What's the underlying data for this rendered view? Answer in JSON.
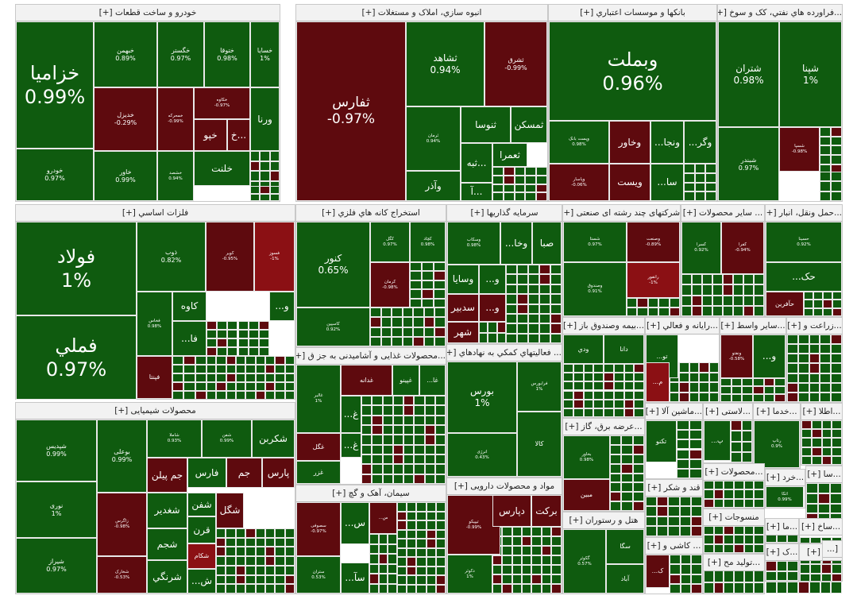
{
  "colors": {
    "up": "#0f5b0f",
    "down": "#5e0a0e",
    "bright_down": "#8b1014"
  },
  "sectors": [
    {
      "label": "خودرو و ساخت قطعات [+]",
      "tiles": [
        {
          "sym": "خزامیا",
          "chg": "0.99%",
          "dir": "up"
        },
        {
          "sym": "خودرو",
          "chg": "0.97%",
          "dir": "up"
        },
        {
          "sym": "خبهمن",
          "chg": "0.89%",
          "dir": "up"
        },
        {
          "sym": "خگستر",
          "chg": "0.97%",
          "dir": "up"
        },
        {
          "sym": "ختوقا",
          "chg": "0.98%",
          "dir": "up"
        },
        {
          "sym": "خسایا",
          "chg": "1%",
          "dir": "up"
        },
        {
          "sym": "خمحرکه",
          "chg": "-0.99%",
          "dir": "down"
        },
        {
          "sym": "خکاوه",
          "chg": "-0.97%",
          "dir": "down"
        },
        {
          "sym": "ورنا",
          "chg": "",
          "dir": "up"
        },
        {
          "sym": "خدیزل",
          "chg": "-0.29%",
          "dir": "down"
        },
        {
          "sym": "خاور",
          "chg": "0.99%",
          "dir": "up"
        },
        {
          "sym": "خشصد",
          "chg": "0.94%",
          "dir": "up"
        },
        {
          "sym": "خپو",
          "chg": "",
          "dir": "down"
        },
        {
          "sym": "خ...",
          "chg": "",
          "dir": "down"
        },
        {
          "sym": "خلنت",
          "chg": "",
          "dir": "up"
        }
      ]
    },
    {
      "label": "انبوه سازي، املاک و مستغلات [+]",
      "tiles": [
        {
          "sym": "ثفارس",
          "chg": "-0.97%",
          "dir": "down"
        },
        {
          "sym": "ثشاهد",
          "chg": "0.94%",
          "dir": "up"
        },
        {
          "sym": "ثشرق",
          "chg": "-0.99%",
          "dir": "down"
        },
        {
          "sym": "ثرمان",
          "chg": "0.94%",
          "dir": "up"
        },
        {
          "sym": "ثنوسا",
          "chg": "",
          "dir": "up"
        },
        {
          "sym": "ثمسکن",
          "chg": "",
          "dir": "up"
        },
        {
          "sym": "ثعمرا",
          "chg": "",
          "dir": "up"
        },
        {
          "sym": "ثبه...",
          "chg": "",
          "dir": "up"
        },
        {
          "sym": "وآذر",
          "chg": "",
          "dir": "up"
        },
        {
          "sym": "آ...",
          "chg": "",
          "dir": "up"
        }
      ]
    },
    {
      "label": "بانکها و موسسات اعتباري [+]",
      "tiles": [
        {
          "sym": "وبملت",
          "chg": "0.96%",
          "dir": "up"
        },
        {
          "sym": "وپست بانک",
          "chg": "0.98%",
          "dir": "up"
        },
        {
          "sym": "وخاور",
          "chg": "",
          "dir": "down"
        },
        {
          "sym": "...ونجا",
          "chg": "",
          "dir": "up"
        },
        {
          "sym": "...وگر",
          "chg": "",
          "dir": "up"
        },
        {
          "sym": "وپاسار",
          "chg": "-0.06%",
          "dir": "down"
        },
        {
          "sym": "ویست",
          "chg": "",
          "dir": "down"
        },
        {
          "sym": "...سا",
          "chg": "",
          "dir": "up"
        }
      ]
    },
    {
      "label": "...فراورده هاي نفتي، کک و سوخ [+]",
      "tiles": [
        {
          "sym": "شتران",
          "chg": "0.98%",
          "dir": "up"
        },
        {
          "sym": "شپنا",
          "chg": "1%",
          "dir": "up"
        },
        {
          "sym": "شبندر",
          "chg": "0.97%",
          "dir": "up"
        },
        {
          "sym": "شسپا",
          "chg": "-0.98%",
          "dir": "down"
        }
      ]
    },
    {
      "label": "فلزات اساسي [+]",
      "tiles": [
        {
          "sym": "فولاد",
          "chg": "1%",
          "dir": "up"
        },
        {
          "sym": "فملي",
          "chg": "0.97%",
          "dir": "up"
        },
        {
          "sym": "ذوب",
          "chg": "0.82%",
          "dir": "up"
        },
        {
          "sym": "کویر",
          "chg": "-0.95%",
          "dir": "down"
        },
        {
          "sym": "فسوز",
          "chg": "-1%",
          "dir": "bright_down"
        },
        {
          "sym": "کاوه",
          "chg": "",
          "dir": "up"
        },
        {
          "sym": "فخاس",
          "chg": "0.98%",
          "dir": "up"
        },
        {
          "sym": "...فا",
          "chg": "",
          "dir": "up"
        },
        {
          "sym": "...و",
          "chg": "",
          "dir": "up"
        },
        {
          "sym": "فپنتا",
          "chg": "",
          "dir": "down"
        }
      ]
    },
    {
      "label": "استخراج کانه هاي فلزي [+]",
      "tiles": [
        {
          "sym": "کنور",
          "chg": "0.65%",
          "dir": "up"
        },
        {
          "sym": "کگل",
          "chg": "0.97%",
          "dir": "up"
        },
        {
          "sym": "کچاد",
          "chg": "0.98%",
          "dir": "up"
        },
        {
          "sym": "کاسپین",
          "chg": "0.92%",
          "dir": "up"
        },
        {
          "sym": "کرمان",
          "chg": "-0.98%",
          "dir": "down"
        }
      ]
    },
    {
      "label": "سرمایه گذاریها [+]",
      "tiles": [
        {
          "sym": "وسکاب",
          "chg": "0.98%",
          "dir": "up"
        },
        {
          "sym": "...وخا",
          "chg": "",
          "dir": "up"
        },
        {
          "sym": "صبا",
          "chg": "",
          "dir": "up"
        },
        {
          "sym": "وسایا",
          "chg": "",
          "dir": "up"
        },
        {
          "sym": "...و",
          "chg": "",
          "dir": "up"
        },
        {
          "sym": "سدبیر",
          "chg": "",
          "dir": "down"
        },
        {
          "sym": "...و",
          "chg": "",
          "dir": "down"
        },
        {
          "sym": "شهر",
          "chg": "",
          "dir": "down"
        }
      ]
    },
    {
      "label": "شرکتهای چند رشته ای صنعتی [+]",
      "tiles": [
        {
          "sym": "شستا",
          "chg": "0.97%",
          "dir": "up"
        },
        {
          "sym": "وصنعت",
          "chg": "-0.89%",
          "dir": "down"
        },
        {
          "sym": "وصندوق",
          "chg": "0.91%",
          "dir": "up"
        },
        {
          "sym": "رانفور",
          "chg": "-1%",
          "dir": "bright_down"
        }
      ]
    },
    {
      "label": "... سایر محصولات [+]",
      "tiles": [
        {
          "sym": "کسرا",
          "chg": "0.92%",
          "dir": "up"
        },
        {
          "sym": "کفرا",
          "chg": "-0.94%",
          "dir": "down"
        }
      ]
    },
    {
      "label": "...حمل ونقل، انبار [+]",
      "tiles": [
        {
          "sym": "حسینا",
          "chg": "0.92%",
          "dir": "up"
        },
        {
          "sym": "...حک",
          "chg": "",
          "dir": "up"
        },
        {
          "sym": "حآفرین",
          "chg": "",
          "dir": "down"
        }
      ]
    },
    {
      "label": "محصولات شیمیایی [+]",
      "tiles": [
        {
          "sym": "شپدیس",
          "chg": "0.99%",
          "dir": "up"
        },
        {
          "sym": "نوری",
          "chg": "1%",
          "dir": "up"
        },
        {
          "sym": "شیراز",
          "chg": "0.97%",
          "dir": "up"
        },
        {
          "sym": "بوعلی",
          "chg": "0.99%",
          "dir": "up"
        },
        {
          "sym": "زاگرس",
          "chg": "-0.98%",
          "dir": "down"
        },
        {
          "sym": "شاملا",
          "chg": "0.93%",
          "dir": "up"
        },
        {
          "sym": "شفن",
          "chg": "0.99%",
          "dir": "up"
        },
        {
          "sym": "شکربن",
          "chg": "",
          "dir": "up"
        },
        {
          "sym": "جم پیلن",
          "chg": "",
          "dir": "down"
        },
        {
          "sym": "فارس",
          "chg": "",
          "dir": "up"
        },
        {
          "sym": "جم",
          "chg": "",
          "dir": "down"
        },
        {
          "sym": "پارس",
          "chg": "",
          "dir": "down"
        },
        {
          "sym": "شغدیر",
          "chg": "",
          "dir": "up"
        },
        {
          "sym": "شفن",
          "chg": "",
          "dir": "up"
        },
        {
          "sym": "شگل",
          "chg": "",
          "dir": "down"
        },
        {
          "sym": "قرن",
          "chg": "",
          "dir": "up"
        },
        {
          "sym": "شجم",
          "chg": "",
          "dir": "up"
        },
        {
          "sym": "شکام",
          "chg": "",
          "dir": "bright_down"
        },
        {
          "sym": "شرنگي",
          "chg": "",
          "dir": "up"
        },
        {
          "sym": "...ش",
          "chg": "",
          "dir": "up"
        },
        {
          "sym": "شخارک",
          "chg": "-0.53%",
          "dir": "down"
        }
      ]
    },
    {
      "label": "...محصولات غذایی و آشامیدنی به جز ق [+]",
      "tiles": [
        {
          "sym": "غالبر",
          "chg": "1%",
          "dir": "up"
        },
        {
          "sym": "غدانه",
          "chg": "",
          "dir": "down"
        },
        {
          "sym": "غپینو",
          "chg": "",
          "dir": "up"
        },
        {
          "sym": "...غا",
          "chg": "",
          "dir": "up"
        },
        {
          "sym": "...غ",
          "chg": "",
          "dir": "up"
        },
        {
          "sym": "...غ",
          "chg": "",
          "dir": "up"
        },
        {
          "sym": "غگل",
          "chg": "",
          "dir": "down"
        },
        {
          "sym": "غزر",
          "chg": "",
          "dir": "up"
        }
      ]
    },
    {
      "label": "... فعالیتهاي کمکي به نهادهاي [+]",
      "tiles": [
        {
          "sym": "بورس",
          "chg": "1%",
          "dir": "up"
        },
        {
          "sym": "فرابورس",
          "chg": "1%",
          "dir": "up"
        },
        {
          "sym": "انرژی",
          "chg": "0.43%",
          "dir": "up"
        },
        {
          "sym": "کالا",
          "chg": "",
          "dir": "up"
        }
      ]
    },
    {
      "label": "...بیمه وصندوق باز [+]",
      "tiles": [
        {
          "sym": "ودي",
          "chg": "",
          "dir": "up"
        },
        {
          "sym": "دانا",
          "chg": "",
          "dir": "up"
        }
      ]
    },
    {
      "label": "...رایانه و فعالي [+]",
      "tiles": [
        {
          "sym": "...تو",
          "chg": "",
          "dir": "up"
        },
        {
          "sym": "...م",
          "chg": "",
          "dir": "bright_down"
        }
      ]
    },
    {
      "label": "...سایر واسط [+]",
      "tiles": [
        {
          "sym": "ونفتو",
          "chg": "-0.58%",
          "dir": "down"
        },
        {
          "sym": "...و",
          "chg": "",
          "dir": "up"
        }
      ]
    },
    {
      "label": "...زراعت و [+]",
      "tiles": []
    },
    {
      "label": "سیمان، آهک و گچ [+]",
      "tiles": [
        {
          "sym": "سصوفی",
          "chg": "-0.97%",
          "dir": "down"
        },
        {
          "sym": "...س",
          "chg": "",
          "dir": "up"
        },
        {
          "sym": "...س",
          "chg": "",
          "dir": "down"
        },
        {
          "sym": "ستران",
          "chg": "0.53%",
          "dir": "up"
        },
        {
          "sym": "...سآ",
          "chg": "",
          "dir": "up"
        }
      ]
    },
    {
      "label": "مواد و محصولات دارویی [+]",
      "tiles": [
        {
          "sym": "تیپیکو",
          "chg": "-0.99%",
          "dir": "down"
        },
        {
          "sym": "دپارس",
          "chg": "",
          "dir": "down"
        },
        {
          "sym": "برکت",
          "chg": "",
          "dir": "down"
        },
        {
          "sym": "دکوثر",
          "chg": "1%",
          "dir": "up"
        }
      ]
    },
    {
      "label": "...عرضه برق، گاز [+]",
      "tiles": [
        {
          "sym": "بخاور",
          "chg": "0.98%",
          "dir": "up"
        },
        {
          "sym": "مبین",
          "chg": "",
          "dir": "down"
        }
      ]
    },
    {
      "label": "...ماشین آلا [+]",
      "tiles": [
        {
          "sym": "تکنو",
          "chg": "",
          "dir": "up"
        }
      ]
    },
    {
      "label": "...لاستی [+]",
      "tiles": [
        {
          "sym": "...پ",
          "chg": "",
          "dir": "up"
        }
      ]
    },
    {
      "label": "...خدما [+]",
      "tiles": [
        {
          "sym": "رتاپ",
          "chg": "0.9%",
          "dir": "up"
        }
      ]
    },
    {
      "label": "...اطلا [+]",
      "tiles": []
    },
    {
      "label": "هتل و رستوران [+]",
      "tiles": [
        {
          "sym": "سگا",
          "chg": "",
          "dir": "up"
        },
        {
          "sym": "گکوثر",
          "chg": "0.57%",
          "dir": "up"
        },
        {
          "sym": "آباد",
          "chg": "",
          "dir": "up"
        }
      ]
    },
    {
      "label": "قند و شکر [+]",
      "tiles": []
    },
    {
      "label": "...محصولات [+]",
      "tiles": []
    },
    {
      "label": "...خرد [+]",
      "tiles": [
        {
          "sym": "اتکا",
          "chg": "0.99%",
          "dir": "up"
        }
      ]
    },
    {
      "label": "...سا [+]",
      "tiles": []
    },
    {
      "label": "منسوجات [+]",
      "tiles": []
    },
    {
      "label": "...ما [+]",
      "tiles": []
    },
    {
      "label": "...ساخ [+]",
      "tiles": []
    },
    {
      "label": "... کاشی و [+]",
      "tiles": [
        {
          "sym": "...ک",
          "chg": "",
          "dir": "down"
        }
      ]
    },
    {
      "label": "...تولید مح [+]",
      "tiles": []
    },
    {
      "label": "...ک [+]",
      "tiles": []
    },
    {
      "label": "...د [+]",
      "tiles": []
    },
    {
      "label": "[...",
      "tiles": []
    }
  ]
}
